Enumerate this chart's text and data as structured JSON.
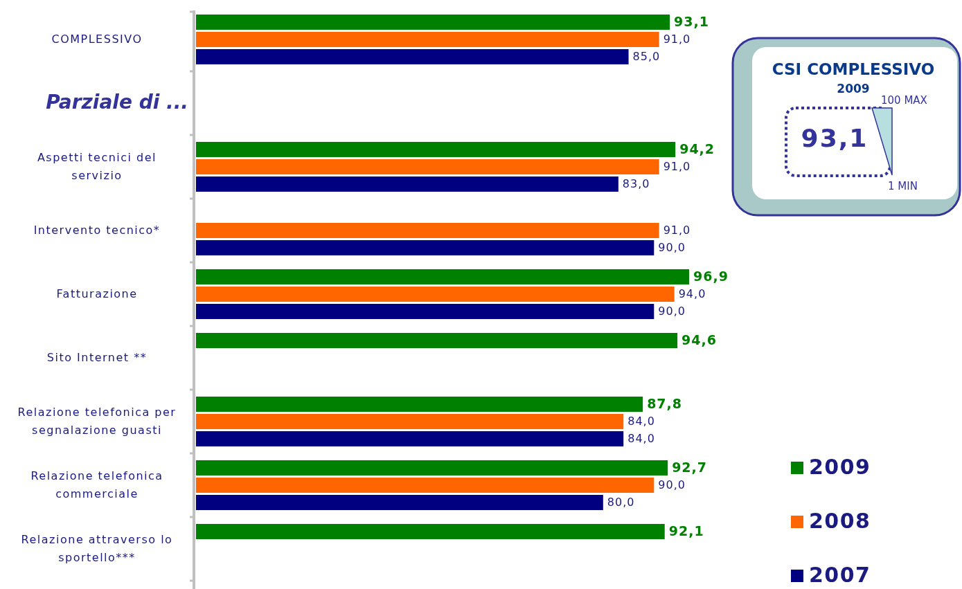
{
  "chart_data": [
    {
      "type": "bar",
      "orientation": "horizontal",
      "categories": [
        "COMPLESSIVO",
        null,
        "Aspetti tecnici del servizio",
        "Intervento tecnico*",
        "Fatturazione",
        "Sito Internet **",
        "Relazione telefonica per segnalazione guasti",
        "Relazione telefonica commerciale",
        "Relazione attraverso lo sportello***"
      ],
      "series": [
        {
          "name": "2009",
          "color": "#008000",
          "values": [
            93.1,
            null,
            94.2,
            null,
            96.9,
            94.6,
            87.8,
            92.7,
            92.1
          ],
          "value_labels": [
            "93,1",
            null,
            "94,2",
            null,
            "96,9",
            "94,6",
            "87,8",
            "92,7",
            "92,1"
          ]
        },
        {
          "name": "2008",
          "color": "#ff6600",
          "values": [
            91.0,
            null,
            91.0,
            91.0,
            94.0,
            null,
            84.0,
            90.0,
            null
          ],
          "value_labels": [
            "91,0",
            null,
            "91,0",
            "91,0",
            "94,0",
            null,
            "84,0",
            "90,0",
            null
          ]
        },
        {
          "name": "2007",
          "color": "#000080",
          "values": [
            85.0,
            null,
            83.0,
            90.0,
            90.0,
            null,
            84.0,
            80.0,
            null
          ],
          "value_labels": [
            "85,0",
            null,
            "83,0",
            "90,0",
            "90,0",
            null,
            "84,0",
            "80,0",
            null
          ]
        }
      ],
      "legend": "bottom right",
      "annotations": [
        "Parziale di ..."
      ]
    },
    {
      "type": "other",
      "title": "CSI COMPLESSIVO",
      "subtitle": "2009",
      "annotations": [
        "93,1",
        "100 MAX",
        "1 MIN"
      ]
    }
  ]
}
